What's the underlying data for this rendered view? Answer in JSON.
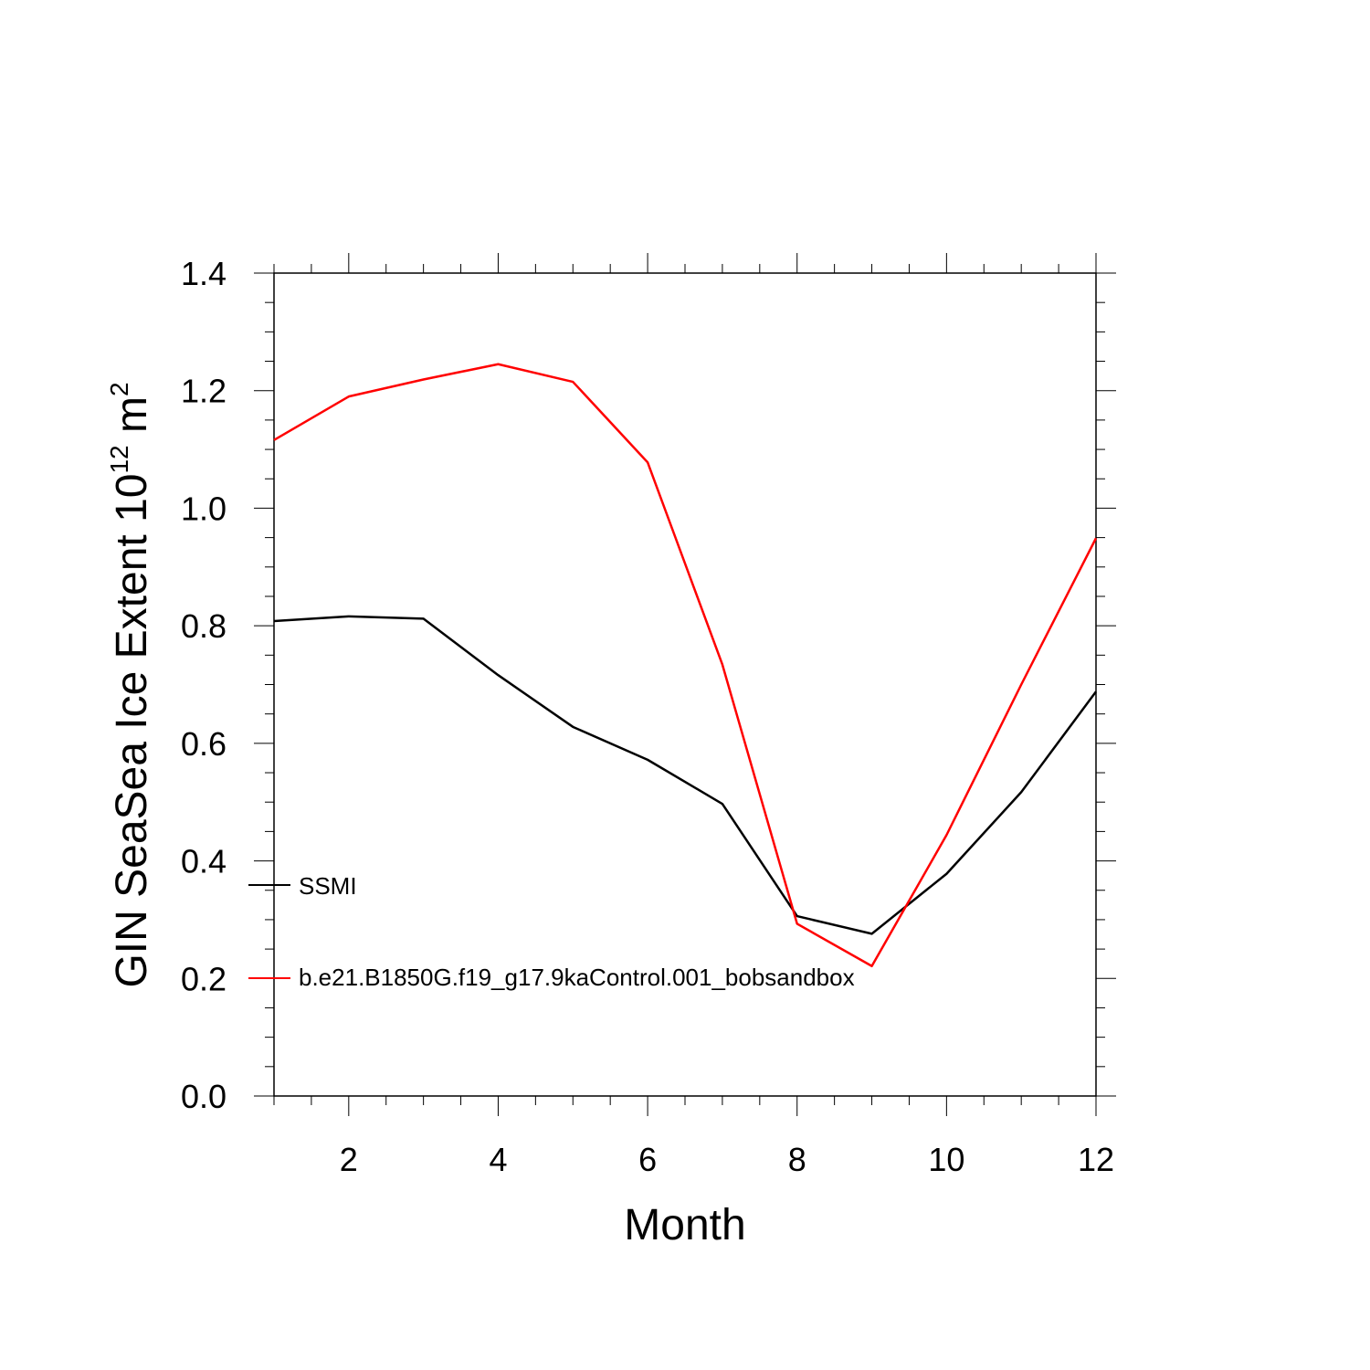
{
  "chart_data": {
    "type": "line",
    "xlabel": "Month",
    "ylabel": "GIN SeaSea Ice Extent 10",
    "ylabel_exponent": "12",
    "ylabel_unit": " m",
    "ylabel_unit_exponent": "2",
    "xlim": [
      1,
      12
    ],
    "ylim": [
      0,
      1.4
    ],
    "x_ticks": [
      "2",
      "4",
      "6",
      "8",
      "10",
      "12"
    ],
    "y_ticks": [
      "0.0",
      "0.2",
      "0.4",
      "0.6",
      "0.8",
      "1.0",
      "1.2",
      "1.4"
    ],
    "x": [
      1,
      2,
      3,
      4,
      5,
      6,
      7,
      8,
      9,
      10,
      11,
      12
    ],
    "series": [
      {
        "name": "SSMI",
        "color": "#000000",
        "values": [
          0.808,
          0.816,
          0.812,
          0.716,
          0.628,
          0.572,
          0.497,
          0.306,
          0.276,
          0.378,
          0.517,
          0.688
        ]
      },
      {
        "name": "b.e21.B1850G.f19_g17.9kaControl.001_bobsandbox",
        "color": "#ff0000",
        "values": [
          1.116,
          1.19,
          1.219,
          1.245,
          1.215,
          1.078,
          0.734,
          0.293,
          0.221,
          0.444,
          0.7,
          0.949
        ]
      }
    ],
    "grid": false,
    "legend_position": "inside-left-lower"
  }
}
